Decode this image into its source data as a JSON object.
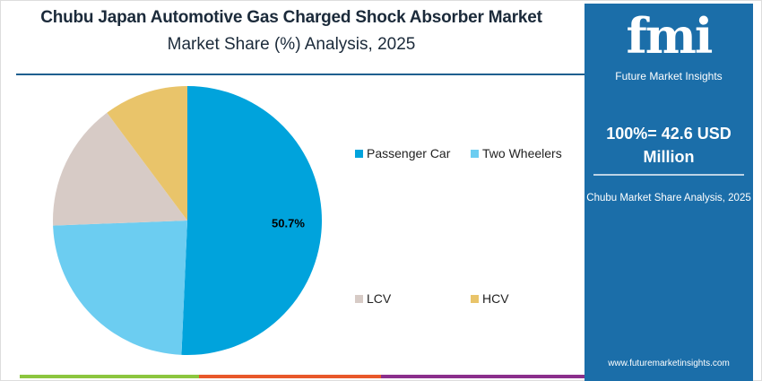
{
  "header": {
    "title": "Chubu Japan Automotive Gas Charged Shock Absorber Market",
    "subtitle": "Market Share (%) Analysis, 2025"
  },
  "panel": {
    "logo_text": "fmi",
    "logo_sub": "Future Market Insights",
    "total_line1": "100%= 42.6 USD",
    "total_line2": "Million",
    "caption": "Chubu Market Share Analysis, 2025",
    "url": "www.futuremarketinsights.com"
  },
  "colors": {
    "panel": "#1b6ea9",
    "bars": [
      "#8cc63f",
      "#e8582a",
      "#8b2f8c"
    ]
  },
  "chart_data": {
    "type": "pie",
    "categories": [
      "Passenger Car",
      "Two Wheelers",
      "LCV",
      "HCV"
    ],
    "values": [
      50.7,
      23.7,
      15.4,
      10.2
    ],
    "colors": [
      "#00a3dc",
      "#6ccdf1",
      "#d7cbc6",
      "#e9c46a"
    ],
    "data_labels": [
      "50.7%",
      "",
      "",
      ""
    ],
    "start": "top",
    "direction": "clockwise",
    "legend_placement": "right"
  }
}
